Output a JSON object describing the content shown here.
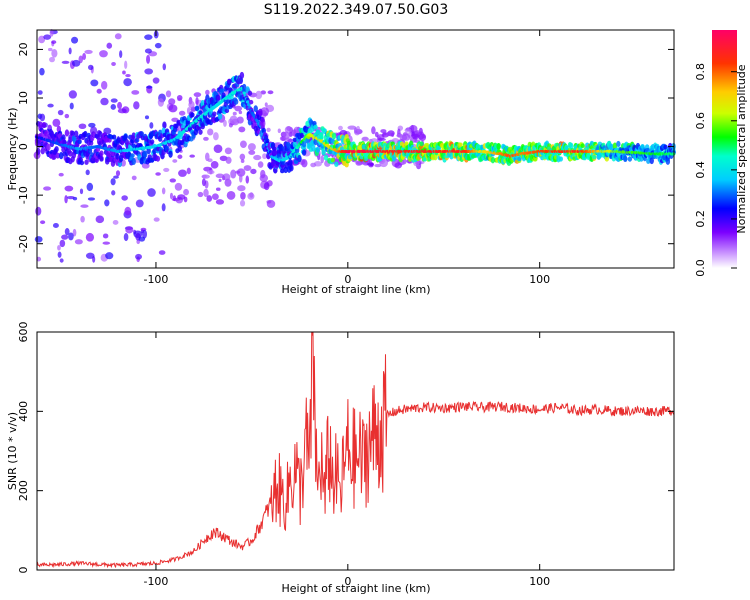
{
  "title": "S119.2022.349.07.50.G03",
  "chart_data": [
    {
      "type": "heatmap",
      "xlabel": "Height of straight line (km)",
      "ylabel": "Frequency (Hz)",
      "xlim": [
        -162,
        170
      ],
      "ylim": [
        -25,
        24
      ],
      "x_ticks": [
        -100,
        0,
        100
      ],
      "x_tick_labels": [
        "-100",
        "0",
        "100"
      ],
      "y_ticks": [
        -20,
        -10,
        0,
        10,
        20
      ],
      "y_tick_labels": [
        "-20",
        "-10",
        "0",
        "10",
        "20"
      ],
      "colorbar": {
        "label": "Normalized spectral amplitude",
        "range": [
          0,
          0.97
        ],
        "ticks": [
          0,
          0.2,
          0.4,
          0.6,
          0.8
        ],
        "tick_labels": [
          "0.0",
          "0.2",
          "0.4",
          "0.6",
          "0.8"
        ]
      },
      "ridge": {
        "description_free": true,
        "x": [
          -162,
          -150,
          -140,
          -130,
          -120,
          -110,
          -100,
          -90,
          -80,
          -70,
          -60,
          -55,
          -50,
          -45,
          -40,
          -35,
          -30,
          -25,
          -20,
          -15,
          -10,
          -5,
          0,
          10,
          20,
          40,
          60,
          70,
          80,
          85,
          90,
          100,
          120,
          140,
          160,
          170
        ],
        "y": [
          2,
          0.5,
          -0.5,
          0,
          -1,
          -0.5,
          0,
          1.5,
          5,
          8,
          11,
          12,
          7,
          4,
          -2,
          -3,
          -2,
          0.5,
          2.5,
          1.5,
          0,
          -1,
          -1,
          -1,
          -1,
          -1,
          -1,
          -1,
          -1.5,
          -2,
          -1.5,
          -1,
          -1,
          -1,
          -1.5,
          -1.5
        ],
        "amplitude": [
          0.25,
          0.3,
          0.35,
          0.3,
          0.35,
          0.4,
          0.4,
          0.4,
          0.45,
          0.4,
          0.45,
          0.45,
          0.3,
          0.35,
          0.35,
          0.4,
          0.4,
          0.5,
          0.65,
          0.7,
          0.7,
          0.8,
          0.95,
          0.95,
          0.9,
          0.9,
          0.9,
          0.7,
          0.8,
          0.85,
          0.8,
          0.85,
          0.9,
          0.6,
          0.55,
          0.5
        ]
      }
    },
    {
      "type": "line",
      "xlabel": "Height of straight line (km)",
      "ylabel": "SNR (10 * v/v)",
      "xlim": [
        -162,
        170
      ],
      "ylim": [
        0,
        600
      ],
      "x_ticks": [
        -100,
        0,
        100
      ],
      "x_tick_labels": [
        "-100",
        "0",
        "100"
      ],
      "y_ticks": [
        0,
        200,
        400,
        600
      ],
      "y_tick_labels": [
        "0",
        "200",
        "400",
        "600"
      ],
      "line_color": "#e83030",
      "x": [
        -162,
        -150,
        -140,
        -130,
        -120,
        -110,
        -100,
        -90,
        -80,
        -75,
        -70,
        -65,
        -60,
        -55,
        -50,
        -45,
        -40,
        -37,
        -35,
        -32,
        -30,
        -27,
        -25,
        -22,
        -20,
        -18,
        -16,
        -14,
        -12,
        -10,
        -8,
        -6,
        -4,
        -2,
        0,
        2,
        4,
        6,
        8,
        10,
        12,
        15,
        20,
        25,
        30,
        40,
        50,
        60,
        70,
        80,
        90,
        100,
        110,
        120,
        130,
        140,
        150,
        160,
        170
      ],
      "y": [
        10,
        12,
        15,
        12,
        10,
        12,
        15,
        25,
        45,
        70,
        90,
        80,
        65,
        55,
        70,
        110,
        160,
        230,
        200,
        180,
        240,
        270,
        200,
        330,
        280,
        590,
        200,
        300,
        180,
        330,
        240,
        250,
        200,
        270,
        320,
        300,
        290,
        300,
        280,
        320,
        340,
        360,
        390,
        400,
        405,
        410,
        408,
        412,
        410,
        412,
        408,
        405,
        410,
        402,
        405,
        400,
        402,
        400,
        402
      ]
    }
  ]
}
